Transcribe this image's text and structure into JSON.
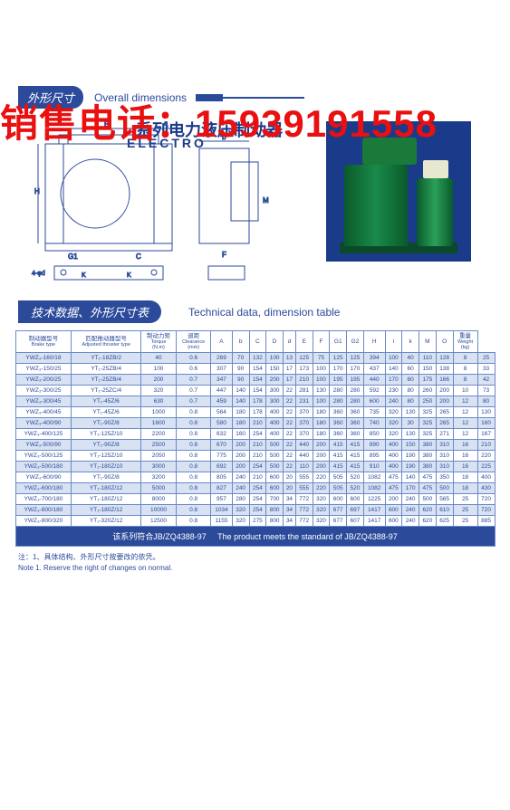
{
  "watermark": "销售电话：15939191558",
  "titles": {
    "cn": "系列电力液压制动器",
    "en": "ELECTRO"
  },
  "sections": {
    "dims_cn": "外形尺寸",
    "dims_en": "Overall dimensions",
    "tech_cn": "技术数据、外形尺寸表",
    "tech_en": "Technical data, dimension table"
  },
  "dim_labels": {
    "E": "E",
    "A": "A",
    "b": "b",
    "H": "H",
    "M": "M",
    "G1": "G1",
    "C": "C",
    "F": "F",
    "K": "K",
    "fourD": "4-φd"
  },
  "table": {
    "headers": [
      {
        "cn": "制动器型号",
        "en": "Brake type"
      },
      {
        "cn": "匹配推动器型号",
        "en": "Adjusted thruster type"
      },
      {
        "cn": "制动力矩",
        "en": "Torque",
        "unit": "(N.m)"
      },
      {
        "cn": "退距",
        "en": "Clearance",
        "unit": "(mm)"
      },
      {
        "h": "A"
      },
      {
        "h": "b"
      },
      {
        "h": "C"
      },
      {
        "h": "D"
      },
      {
        "h": "d"
      },
      {
        "h": "E"
      },
      {
        "h": "F"
      },
      {
        "h": "G1"
      },
      {
        "h": "G2"
      },
      {
        "h": "H"
      },
      {
        "h": "i"
      },
      {
        "h": "k"
      },
      {
        "h": "M"
      },
      {
        "h": "O"
      },
      {
        "cn": "重量",
        "en": "Weight",
        "unit": "(kg)"
      }
    ],
    "rows": [
      [
        "YWZ₃-160/18",
        "YT₁-18ZB/2",
        "40",
        "0.6",
        "269",
        "70",
        "132",
        "100",
        "13",
        "125",
        "75",
        "125",
        "125",
        "394",
        "100",
        "40",
        "110",
        "128",
        "8",
        "25"
      ],
      [
        "YWZ₃-150/25",
        "YT₁-25ZB/4",
        "100",
        "0.6",
        "307",
        "90",
        "154",
        "150",
        "17",
        "173",
        "100",
        "170",
        "170",
        "437",
        "140",
        "60",
        "150",
        "138",
        "8",
        "33"
      ],
      [
        "YWZ₃-200/25",
        "YT₁-25ZB/4",
        "200",
        "0.7",
        "347",
        "90",
        "154",
        "200",
        "17",
        "210",
        "100",
        "195",
        "195",
        "440",
        "170",
        "60",
        "175",
        "166",
        "8",
        "42"
      ],
      [
        "YWZ₃-300/25",
        "YT₁-25ZC/4",
        "320",
        "0.7",
        "447",
        "140",
        "154",
        "300",
        "22",
        "281",
        "130",
        "280",
        "280",
        "592",
        "230",
        "80",
        "260",
        "200",
        "10",
        "73"
      ],
      [
        "YWZ₃-300/45",
        "YT₁-45Z/6",
        "630",
        "0.7",
        "459",
        "140",
        "178",
        "300",
        "22",
        "231",
        "100",
        "280",
        "280",
        "600",
        "240",
        "80",
        "250",
        "200",
        "12",
        "80"
      ],
      [
        "YWZ₃-400/45",
        "YT₁-45Z/6",
        "1000",
        "0.8",
        "564",
        "180",
        "178",
        "400",
        "22",
        "370",
        "180",
        "360",
        "360",
        "735",
        "320",
        "130",
        "325",
        "265",
        "12",
        "130"
      ],
      [
        "YWZ₃-400/90",
        "YT₁-90Z/8",
        "1600",
        "0.8",
        "580",
        "180",
        "210",
        "400",
        "22",
        "370",
        "180",
        "360",
        "360",
        "740",
        "320",
        "30",
        "325",
        "265",
        "12",
        "160"
      ],
      [
        "YWZ₃-400/125",
        "YT₁-125Z/10",
        "2200",
        "0.8",
        "632",
        "160",
        "254",
        "400",
        "22",
        "370",
        "180",
        "360",
        "360",
        "850",
        "320",
        "130",
        "325",
        "271",
        "12",
        "167"
      ],
      [
        "YWZ₃-500/90",
        "YT₁-90Z/8",
        "2500",
        "0.8",
        "670",
        "200",
        "210",
        "500",
        "22",
        "440",
        "200",
        "415",
        "415",
        "890",
        "400",
        "150",
        "380",
        "310",
        "16",
        "210"
      ],
      [
        "YWZ₃-500/125",
        "YT₁-125Z/10",
        "2050",
        "0.8",
        "775",
        "200",
        "210",
        "500",
        "22",
        "440",
        "200",
        "415",
        "415",
        "895",
        "400",
        "190",
        "380",
        "310",
        "16",
        "220"
      ],
      [
        "YWZ₃-500/180",
        "YT₁-180Z/10",
        "3000",
        "0.8",
        "692",
        "200",
        "254",
        "500",
        "22",
        "110",
        "200",
        "415",
        "415",
        "910",
        "400",
        "190",
        "380",
        "310",
        "16",
        "225"
      ],
      [
        "YWZ₃-600/90",
        "YT₁-90Z/8",
        "3200",
        "0.8",
        "805",
        "240",
        "210",
        "600",
        "20",
        "555",
        "220",
        "505",
        "520",
        "1082",
        "475",
        "140",
        "475",
        "350",
        "18",
        "400"
      ],
      [
        "YWZ₃-600/180",
        "YT₁-180Z/12",
        "5000",
        "0.8",
        "827",
        "240",
        "254",
        "600",
        "20",
        "555",
        "220",
        "505",
        "520",
        "1082",
        "475",
        "170",
        "475",
        "500",
        "18",
        "430"
      ],
      [
        "YWZ₃-700/180",
        "YT₁-180Z/12",
        "8000",
        "0.8",
        "957",
        "280",
        "254",
        "700",
        "34",
        "772",
        "320",
        "600",
        "600",
        "1225",
        "200",
        "240",
        "500",
        "565",
        "25",
        "720"
      ],
      [
        "YWZ₃-800/180",
        "YT₁-180Z/12",
        "10000",
        "0.8",
        "1034",
        "320",
        "254",
        "800",
        "34",
        "772",
        "320",
        "677",
        "697",
        "1417",
        "600",
        "240",
        "620",
        "610",
        "25",
        "720"
      ],
      [
        "YWZ₃-800/320",
        "YT₁-320Z/12",
        "12500",
        "0.8",
        "1155",
        "320",
        "275",
        "800",
        "34",
        "772",
        "320",
        "677",
        "607",
        "1417",
        "600",
        "240",
        "620",
        "625",
        "25",
        "885"
      ]
    ]
  },
  "standard": {
    "cn": "该系列符合JB/ZQ4388-97",
    "en": "The product meets the standard of JB/ZQ4388-97"
  },
  "notes": {
    "cn": "注：1、具体结构、外形尺寸按要改的依凭。",
    "en": "Note 1. Reserve the right of changes on normal."
  },
  "colors": {
    "brand": "#2b4a9a",
    "stripe": "#d8e2f2",
    "red": "#e81010",
    "photo_bg": "#1a3a8a",
    "green": "#1a8a4a"
  }
}
